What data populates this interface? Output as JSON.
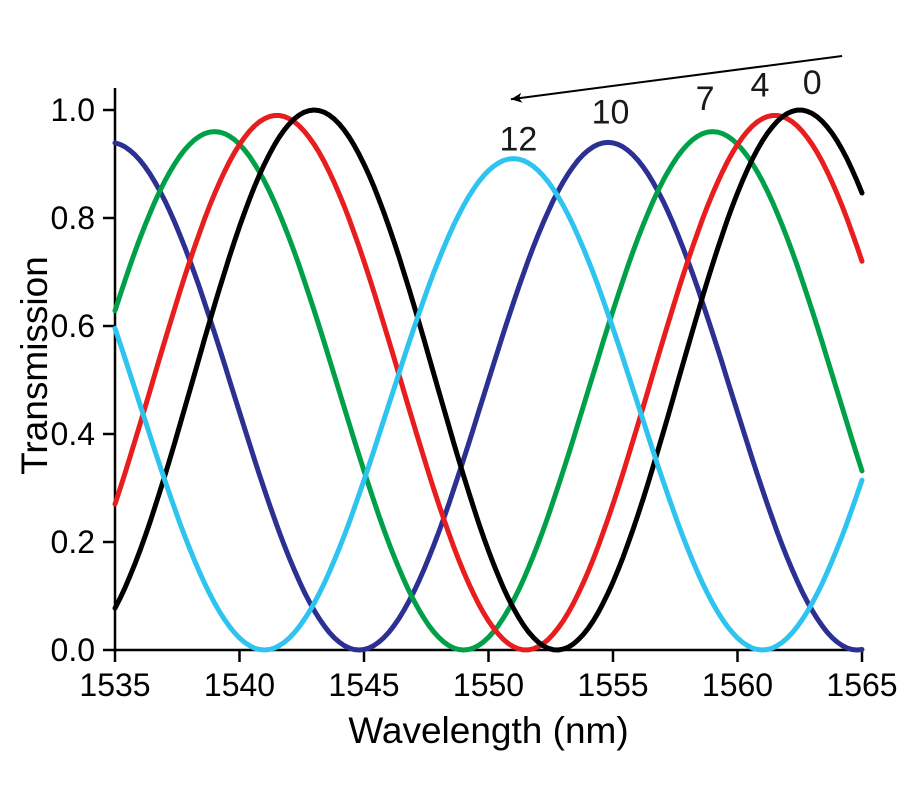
{
  "figure": {
    "background": "#ffffff",
    "axis_color": "#000000",
    "text_color": "#000000",
    "annotation_color": "#1a1a1a"
  },
  "chart_data": {
    "type": "line",
    "title": "",
    "xlabel": "Wavelength  (nm)",
    "ylabel": "Transmission",
    "xlim": [
      1535,
      1565
    ],
    "ylim": [
      0.0,
      1.0
    ],
    "x_ticks": [
      1535,
      1540,
      1545,
      1550,
      1555,
      1560,
      1565
    ],
    "y_ticks": [
      {
        "value": 0.0,
        "label": "0.0"
      },
      {
        "value": 0.2,
        "label": "0.2"
      },
      {
        "value": 0.4,
        "label": "0.4"
      },
      {
        "value": 0.6,
        "label": "0.6"
      },
      {
        "value": 0.8,
        "label": "0.8"
      },
      {
        "value": 1.0,
        "label": "1.0"
      }
    ],
    "grid": false,
    "legend": "in-plot numeric labels with leftward arrow",
    "model": "transmission = amplitude * cos^2(pi * (wavelength - peak_nm) / period_nm)",
    "sample_x": [
      1535,
      1537.5,
      1540,
      1542.5,
      1545,
      1547.5,
      1550,
      1552.5,
      1555,
      1557.5,
      1560,
      1562.5,
      1565
    ],
    "series": [
      {
        "label": "0",
        "color": "#000000",
        "peak_nm": 1562.5,
        "period_nm": 19.5,
        "amplitude": 1.0,
        "values": [
          0.08,
          0.4,
          0.78,
          0.99,
          0.9,
          0.56,
          0.18,
          0.0,
          0.13,
          0.48,
          0.85,
          1.0,
          0.85
        ]
      },
      {
        "label": "4",
        "color": "#e81e1e",
        "peak_nm": 1561.5,
        "period_nm": 20.0,
        "amplitude": 0.99,
        "values": [
          0.27,
          0.65,
          0.94,
          0.97,
          0.72,
          0.34,
          0.05,
          0.02,
          0.27,
          0.65,
          0.94,
          0.97,
          0.72
        ]
      },
      {
        "label": "7",
        "color": "#00a048",
        "peak_nm": 1559.0,
        "period_nm": 20.0,
        "amplitude": 0.96,
        "values": [
          0.63,
          0.91,
          0.94,
          0.7,
          0.33,
          0.05,
          0.02,
          0.26,
          0.63,
          0.91,
          0.94,
          0.7,
          0.33
        ]
      },
      {
        "label": "10",
        "color": "#2b3092",
        "peak_nm": 1554.8,
        "period_nm": 20.0,
        "amplitude": 0.94,
        "values": [
          0.94,
          0.78,
          0.44,
          0.12,
          0.0,
          0.16,
          0.5,
          0.82,
          0.94,
          0.78,
          0.44,
          0.12,
          0.0
        ]
      },
      {
        "label": "12",
        "color": "#2fc3ef",
        "peak_nm": 1551.0,
        "period_nm": 20.0,
        "amplitude": 0.91,
        "values": [
          0.6,
          0.25,
          0.02,
          0.05,
          0.31,
          0.66,
          0.89,
          0.86,
          0.6,
          0.25,
          0.02,
          0.05,
          0.31
        ]
      }
    ],
    "draw_order": [
      "10",
      "7",
      "4",
      "0",
      "12"
    ],
    "annotations": {
      "series_labels": [
        {
          "text": "12",
          "x": 1551.2,
          "y": 0.945
        },
        {
          "text": "10",
          "x": 1554.9,
          "y": 0.995
        },
        {
          "text": "7",
          "x": 1558.7,
          "y": 1.02
        },
        {
          "text": "4",
          "x": 1560.9,
          "y": 1.045
        },
        {
          "text": "0",
          "x": 1563.0,
          "y": 1.05
        }
      ],
      "arrow": {
        "from_x": 1564.2,
        "from_y": 1.1,
        "to_x": 1550.9,
        "to_y": 1.02
      }
    }
  }
}
